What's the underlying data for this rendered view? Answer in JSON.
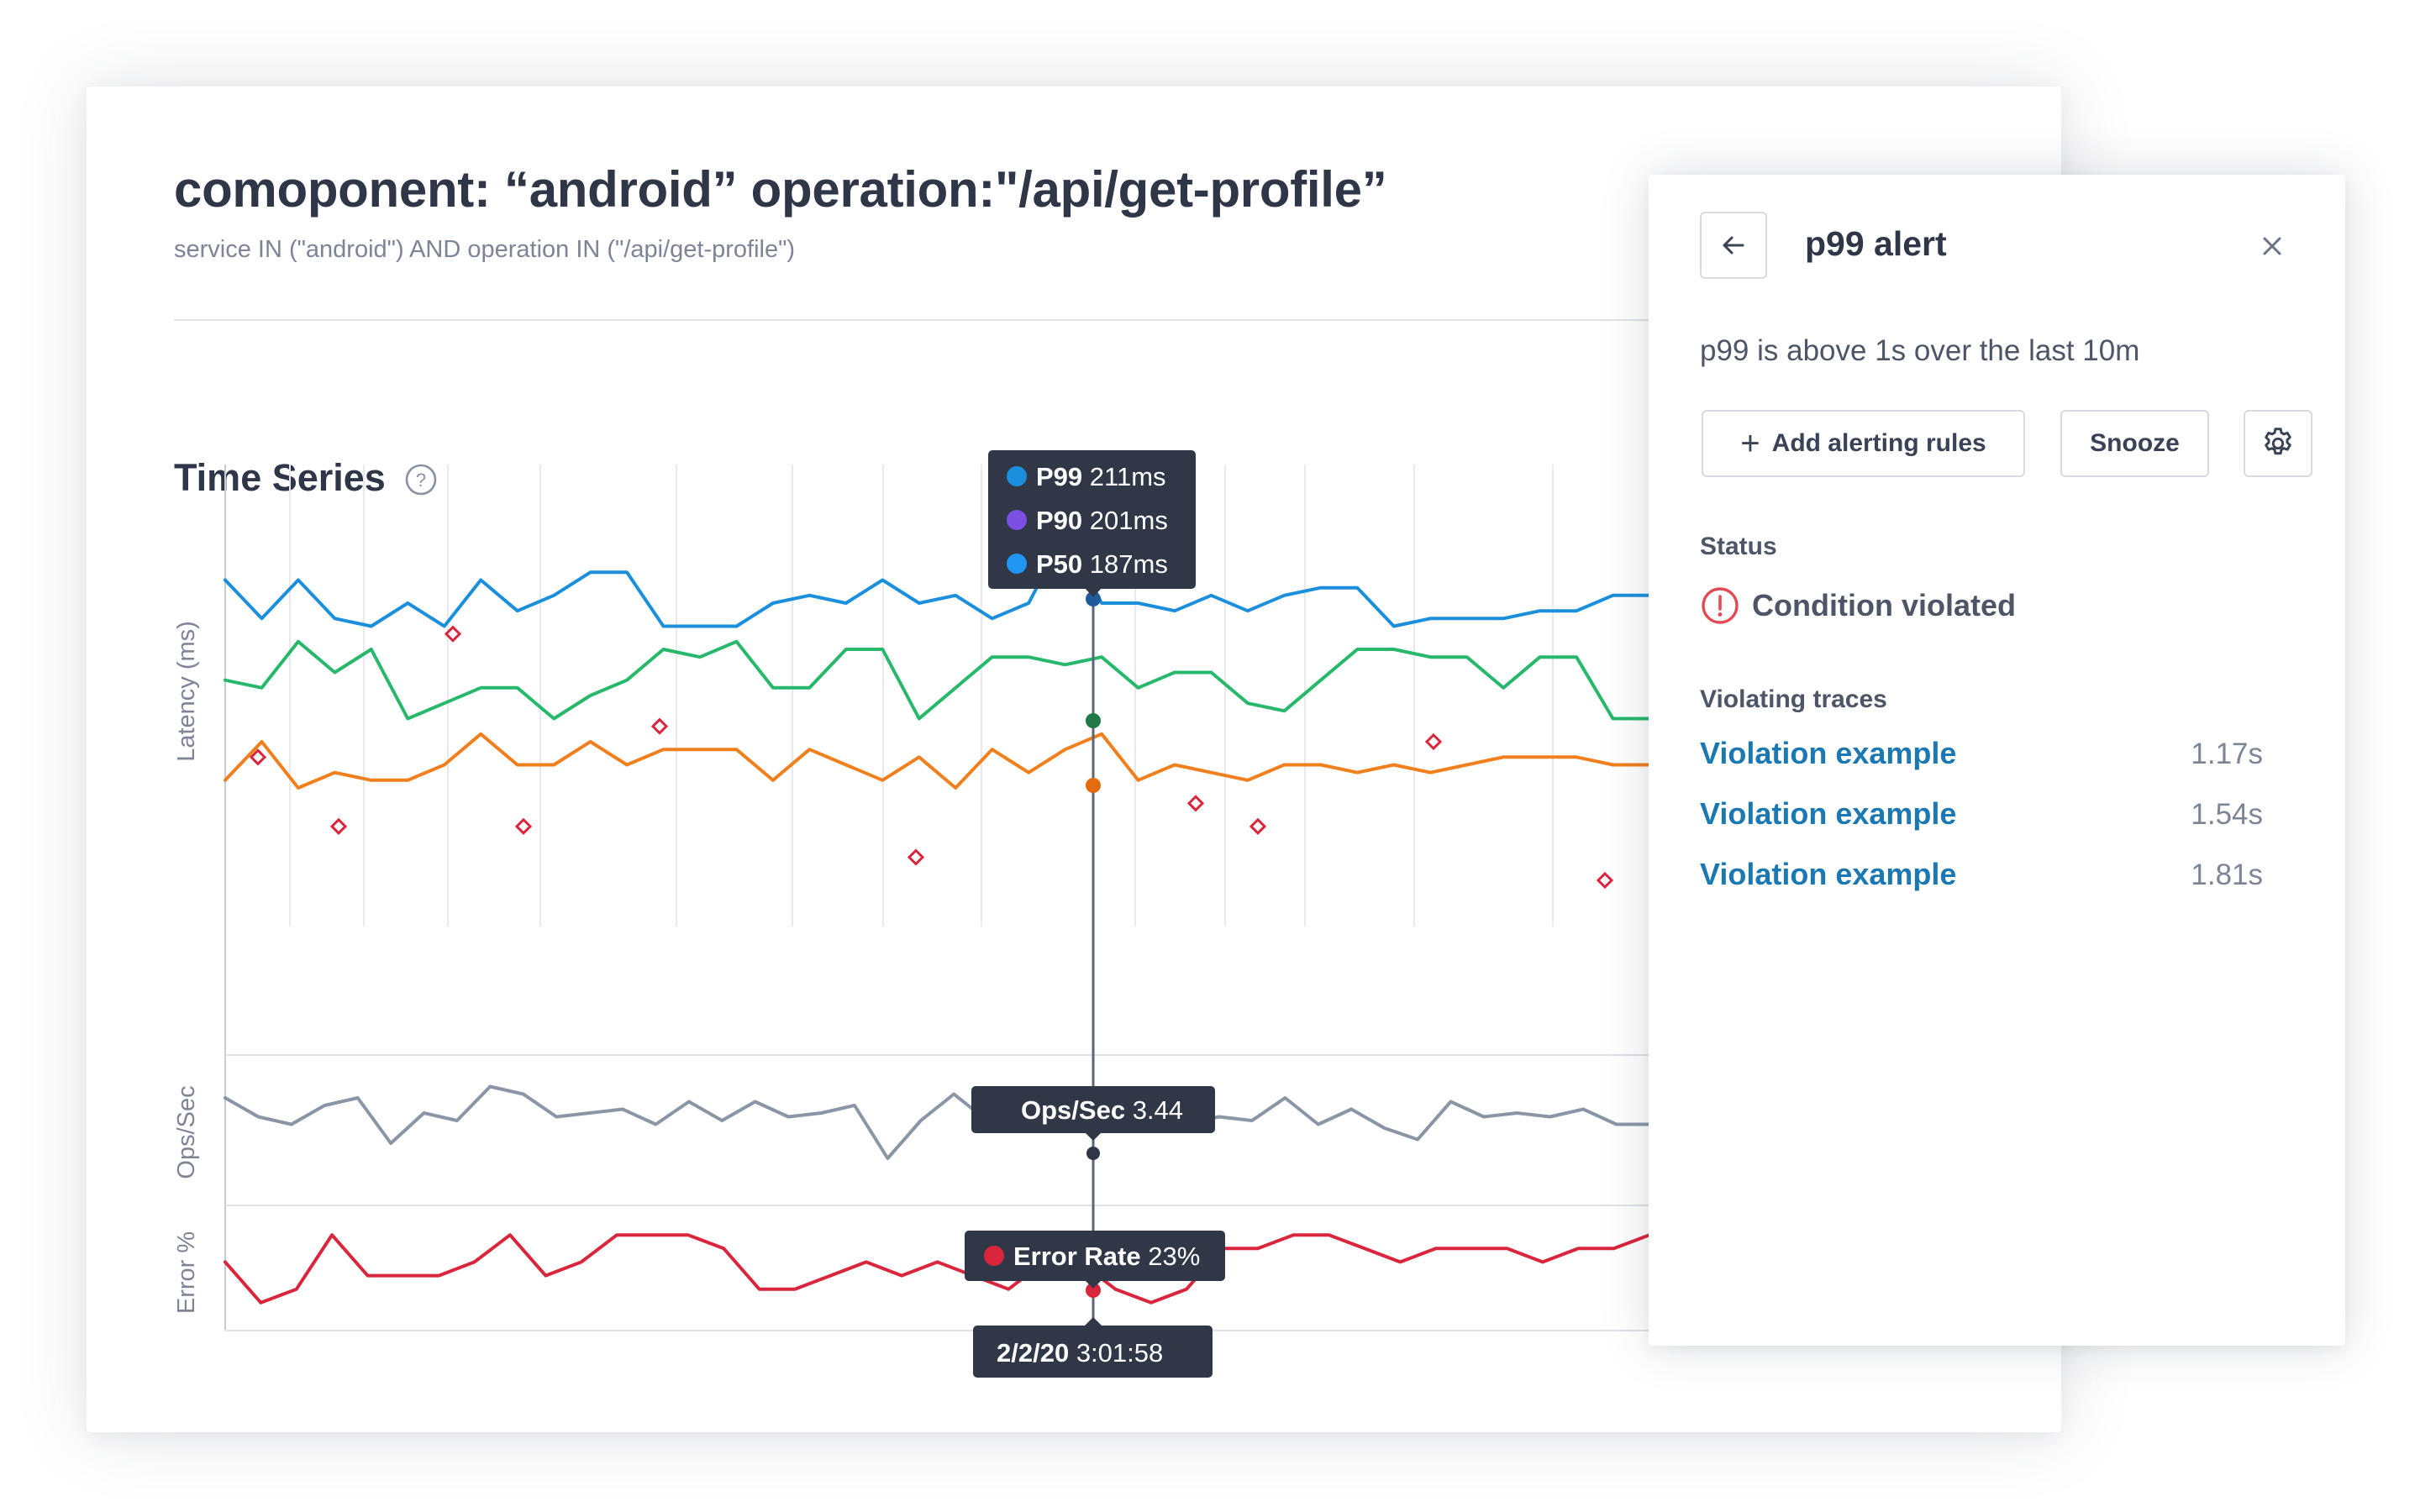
{
  "query": {
    "title": "comoponent: “android” operation:\"/api/get-profile”",
    "expression": "service IN (\"android\") AND operation IN (\"/api/get-profile\")"
  },
  "time_series": {
    "title": "Time Series",
    "help_icon": "question-circle-icon"
  },
  "colors": {
    "p99": "#1c8fdc",
    "p90": "#7b4fe2",
    "p50_tooltip": "#2196f3",
    "green_series": "#27b86b",
    "orange_series": "#f07f1e",
    "ops_series": "#8a96a6",
    "error_series": "#d9263c",
    "tooltip_bg": "#303848",
    "link": "#1b78b3",
    "alert": "#e24b55"
  },
  "chart_data": [
    {
      "type": "line",
      "ylabel": "Latency (ms)",
      "series": [
        {
          "name": "",
          "color": "#1c8fdc",
          "values": [
            205,
            200,
            205,
            200,
            199,
            202,
            199,
            205,
            201,
            203,
            206,
            206,
            199,
            199,
            199,
            202,
            203,
            202,
            205,
            202,
            203,
            200,
            202,
            211,
            202,
            202,
            201,
            203,
            201,
            203,
            204,
            204,
            199,
            200,
            200,
            200,
            201,
            201,
            203,
            203
          ]
        },
        {
          "name": "",
          "color": "#27b86b",
          "values": [
            192,
            191,
            197,
            193,
            196,
            187,
            189,
            191,
            191,
            187,
            190,
            192,
            196,
            195,
            197,
            191,
            191,
            196,
            196,
            187,
            191,
            195,
            195,
            194,
            195,
            191,
            193,
            193,
            189,
            188,
            192,
            196,
            196,
            195,
            195,
            191,
            195,
            195,
            187,
            187
          ]
        },
        {
          "name": "",
          "color": "#f07f1e",
          "values": [
            179,
            184,
            178,
            180,
            179,
            179,
            181,
            185,
            181,
            181,
            184,
            181,
            183,
            183,
            183,
            179,
            183,
            181,
            179,
            182,
            178,
            183,
            180,
            183,
            185,
            179,
            181,
            180,
            179,
            181,
            181,
            180,
            181,
            180,
            181,
            182,
            182,
            182,
            181,
            181
          ]
        }
      ],
      "markers": [
        182,
        198,
        173,
        186,
        169,
        176,
        173,
        184,
        166,
        173
      ]
    },
    {
      "type": "line",
      "ylabel": "Ops/Sec",
      "series": [
        {
          "name": "",
          "color": "#8a96a6",
          "values": [
            3.3,
            2.8,
            2.6,
            3.1,
            3.3,
            2.1,
            2.9,
            2.7,
            3.6,
            3.4,
            2.8,
            2.9,
            3.0,
            2.6,
            3.2,
            2.7,
            3.2,
            2.8,
            2.9,
            3.1,
            1.7,
            2.7,
            3.4,
            2.7,
            2.9,
            2.9,
            3.1,
            2.8,
            2.6,
            2.6,
            2.8,
            2.7,
            3.3,
            2.6,
            3.0,
            2.5,
            2.2,
            3.2,
            2.8,
            2.9,
            2.8,
            3.0,
            2.6,
            2.6
          ]
        }
      ]
    },
    {
      "type": "line",
      "ylabel": "Error %",
      "series": [
        {
          "name": "",
          "color": "#d9263c",
          "values": [
            23,
            20,
            21,
            25,
            22,
            22,
            22,
            23,
            25,
            22,
            23,
            25,
            25,
            25,
            24,
            21,
            21,
            22,
            23,
            22,
            23,
            22,
            21,
            23,
            23,
            21,
            20,
            21,
            24,
            24,
            25,
            25,
            24,
            23,
            24,
            24,
            24,
            23,
            24,
            24,
            25
          ]
        }
      ]
    }
  ],
  "tooltips": {
    "latency": [
      {
        "label": "P99",
        "value": "211ms",
        "color": "#1c8fdc"
      },
      {
        "label": "P90",
        "value": "201ms",
        "color": "#7b4fe2"
      },
      {
        "label": "P50",
        "value": "187ms",
        "color": "#2196f3"
      }
    ],
    "ops": {
      "label": "Ops/Sec",
      "value": "3.44"
    },
    "error": {
      "label": "Error Rate",
      "value": "23%"
    },
    "timestamp": {
      "date": "2/2/20",
      "time": "3:01:58"
    }
  },
  "alert_panel": {
    "title": "p99 alert",
    "description": "p99 is above 1s over the last 10m",
    "add_rules_label": "Add alerting rules",
    "snooze_label": "Snooze",
    "status_label": "Status",
    "status_text": "Condition violated",
    "traces_label": "Violating traces",
    "traces": [
      {
        "label": "Violation example",
        "duration": "1.17s"
      },
      {
        "label": "Violation example",
        "duration": "1.54s"
      },
      {
        "label": "Violation example",
        "duration": "1.81s"
      }
    ]
  }
}
